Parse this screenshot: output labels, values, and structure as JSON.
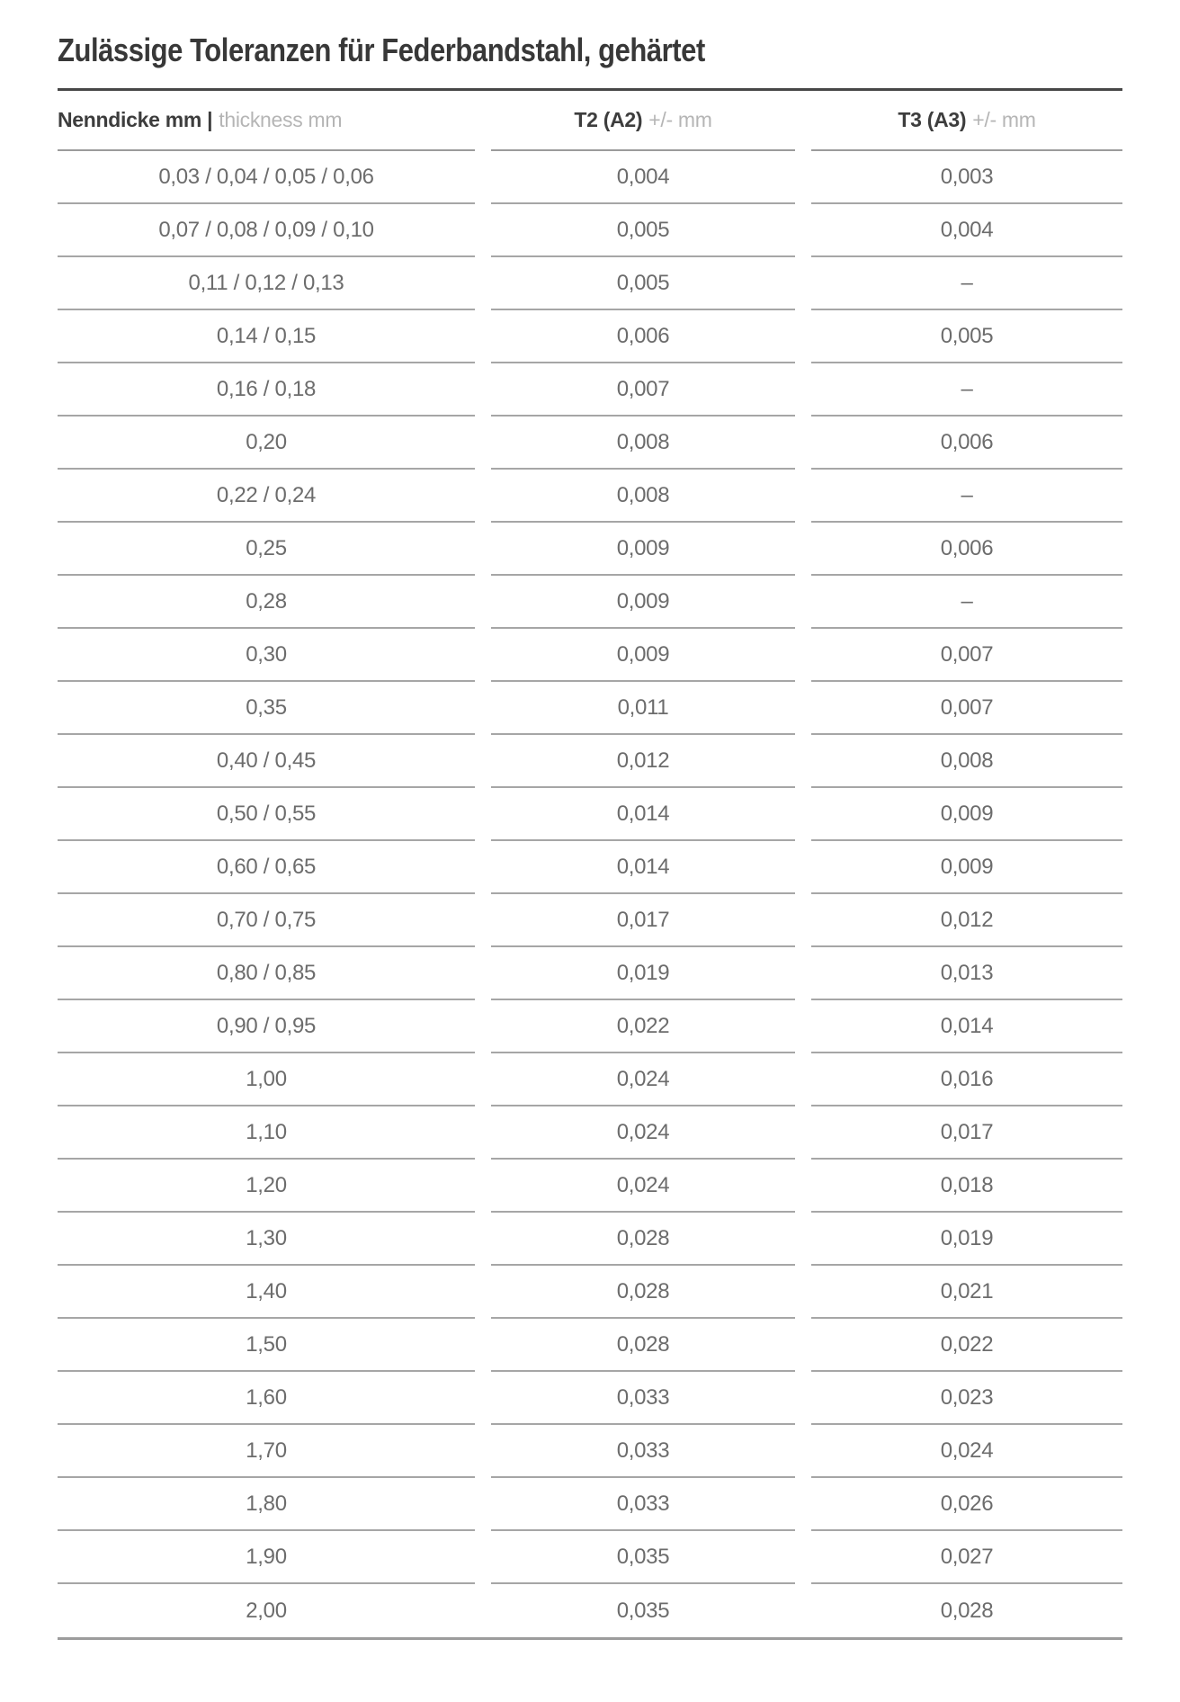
{
  "title": "Zulässige Toleranzen für Federbandstahl, gehärtet",
  "colors": {
    "title_text": "#383838",
    "header_bold_text": "#3d3d3d",
    "header_light_text": "#b5b5b5",
    "value_text": "#6c6c6c",
    "title_rule": "#474747",
    "row_separator": "#a6a6a6",
    "bottom_rule": "#9c9c9c",
    "background": "#ffffff"
  },
  "table": {
    "header": {
      "col1_bold": "Nenndicke mm |",
      "col1_light": "thickness mm",
      "col2_bold": "T2 (A2)",
      "col2_light": "+/- mm",
      "col3_bold": "T3 (A3)",
      "col3_light": "+/- mm"
    },
    "rows": [
      {
        "thickness": "0,03 / 0,04 / 0,05 / 0,06",
        "t2": "0,004",
        "t3": "0,003"
      },
      {
        "thickness": "0,07 / 0,08 / 0,09 / 0,10",
        "t2": "0,005",
        "t3": "0,004"
      },
      {
        "thickness": "0,11 / 0,12 / 0,13",
        "t2": "0,005",
        "t3": "–"
      },
      {
        "thickness": "0,14 / 0,15",
        "t2": "0,006",
        "t3": "0,005"
      },
      {
        "thickness": "0,16 / 0,18",
        "t2": "0,007",
        "t3": "–"
      },
      {
        "thickness": "0,20",
        "t2": "0,008",
        "t3": "0,006"
      },
      {
        "thickness": "0,22 / 0,24",
        "t2": "0,008",
        "t3": "–"
      },
      {
        "thickness": "0,25",
        "t2": "0,009",
        "t3": "0,006"
      },
      {
        "thickness": "0,28",
        "t2": "0,009",
        "t3": "–"
      },
      {
        "thickness": "0,30",
        "t2": "0,009",
        "t3": "0,007"
      },
      {
        "thickness": "0,35",
        "t2": "0,011",
        "t3": "0,007"
      },
      {
        "thickness": "0,40 / 0,45",
        "t2": "0,012",
        "t3": "0,008"
      },
      {
        "thickness": "0,50 / 0,55",
        "t2": "0,014",
        "t3": "0,009"
      },
      {
        "thickness": "0,60 / 0,65",
        "t2": "0,014",
        "t3": "0,009"
      },
      {
        "thickness": "0,70 / 0,75",
        "t2": "0,017",
        "t3": "0,012"
      },
      {
        "thickness": "0,80 / 0,85",
        "t2": "0,019",
        "t3": "0,013"
      },
      {
        "thickness": "0,90 / 0,95",
        "t2": "0,022",
        "t3": "0,014"
      },
      {
        "thickness": "1,00",
        "t2": "0,024",
        "t3": "0,016"
      },
      {
        "thickness": "1,10",
        "t2": "0,024",
        "t3": "0,017"
      },
      {
        "thickness": "1,20",
        "t2": "0,024",
        "t3": "0,018"
      },
      {
        "thickness": "1,30",
        "t2": "0,028",
        "t3": "0,019"
      },
      {
        "thickness": "1,40",
        "t2": "0,028",
        "t3": "0,021"
      },
      {
        "thickness": "1,50",
        "t2": "0,028",
        "t3": "0,022"
      },
      {
        "thickness": "1,60",
        "t2": "0,033",
        "t3": "0,023"
      },
      {
        "thickness": "1,70",
        "t2": "0,033",
        "t3": "0,024"
      },
      {
        "thickness": "1,80",
        "t2": "0,033",
        "t3": "0,026"
      },
      {
        "thickness": "1,90",
        "t2": "0,035",
        "t3": "0,027"
      },
      {
        "thickness": "2,00",
        "t2": "0,035",
        "t3": "0,028"
      }
    ]
  }
}
